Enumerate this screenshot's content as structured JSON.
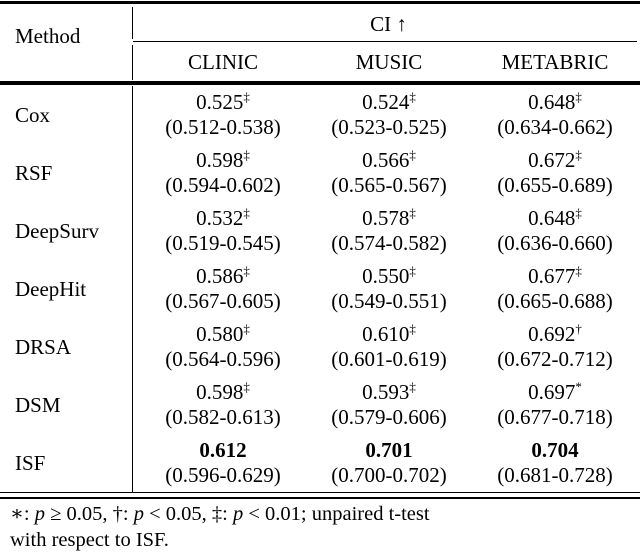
{
  "colors": {
    "text": "#000000",
    "background": "#ffffff",
    "rules": "#000000"
  },
  "table": {
    "header": {
      "method_label": "Method",
      "group_label": "CI",
      "group_arrow": "↑",
      "columns": [
        "CLINIC",
        "MUSIC",
        "METABRIC"
      ]
    },
    "rows": [
      {
        "method": "Cox",
        "cells": [
          {
            "value": "0.525",
            "marker": "‡",
            "ci": "(0.512-0.538)",
            "bold": false
          },
          {
            "value": "0.524",
            "marker": "‡",
            "ci": "(0.523-0.525)",
            "bold": false
          },
          {
            "value": "0.648",
            "marker": "‡",
            "ci": "(0.634-0.662)",
            "bold": false
          }
        ]
      },
      {
        "method": "RSF",
        "cells": [
          {
            "value": "0.598",
            "marker": "‡",
            "ci": "(0.594-0.602)",
            "bold": false
          },
          {
            "value": "0.566",
            "marker": "‡",
            "ci": "(0.565-0.567)",
            "bold": false
          },
          {
            "value": "0.672",
            "marker": "‡",
            "ci": "(0.655-0.689)",
            "bold": false
          }
        ]
      },
      {
        "method": "DeepSurv",
        "cells": [
          {
            "value": "0.532",
            "marker": "‡",
            "ci": "(0.519-0.545)",
            "bold": false
          },
          {
            "value": "0.578",
            "marker": "‡",
            "ci": "(0.574-0.582)",
            "bold": false
          },
          {
            "value": "0.648",
            "marker": "‡",
            "ci": "(0.636-0.660)",
            "bold": false
          }
        ]
      },
      {
        "method": "DeepHit",
        "cells": [
          {
            "value": "0.586",
            "marker": "‡",
            "ci": "(0.567-0.605)",
            "bold": false
          },
          {
            "value": "0.550",
            "marker": "‡",
            "ci": "(0.549-0.551)",
            "bold": false
          },
          {
            "value": "0.677",
            "marker": "‡",
            "ci": "(0.665-0.688)",
            "bold": false
          }
        ]
      },
      {
        "method": "DRSA",
        "cells": [
          {
            "value": "0.580",
            "marker": "‡",
            "ci": "(0.564-0.596)",
            "bold": false
          },
          {
            "value": "0.610",
            "marker": "‡",
            "ci": "(0.601-0.619)",
            "bold": false
          },
          {
            "value": "0.692",
            "marker": "†",
            "ci": "(0.672-0.712)",
            "bold": false
          }
        ]
      },
      {
        "method": "DSM",
        "cells": [
          {
            "value": "0.598",
            "marker": "‡",
            "ci": "(0.582-0.613)",
            "bold": false
          },
          {
            "value": "0.593",
            "marker": "‡",
            "ci": "(0.579-0.606)",
            "bold": false
          },
          {
            "value": "0.697",
            "marker": "*",
            "ci": "(0.677-0.718)",
            "bold": false
          }
        ]
      },
      {
        "method": "ISF",
        "cells": [
          {
            "value": "0.612",
            "marker": "",
            "ci": "(0.596-0.629)",
            "bold": true
          },
          {
            "value": "0.701",
            "marker": "",
            "ci": "(0.700-0.702)",
            "bold": true
          },
          {
            "value": "0.704",
            "marker": "",
            "ci": "(0.681-0.728)",
            "bold": true
          }
        ]
      }
    ],
    "footnote": {
      "line1_segments": [
        {
          "t": "∗: "
        },
        {
          "t": "p",
          "i": true
        },
        {
          "t": " ≥ 0.05, †: "
        },
        {
          "t": "p",
          "i": true
        },
        {
          "t": " < 0.05, ‡: "
        },
        {
          "t": "p",
          "i": true
        },
        {
          "t": " < 0.01; unpaired t-test"
        }
      ],
      "line2": "with respect to ISF."
    }
  }
}
